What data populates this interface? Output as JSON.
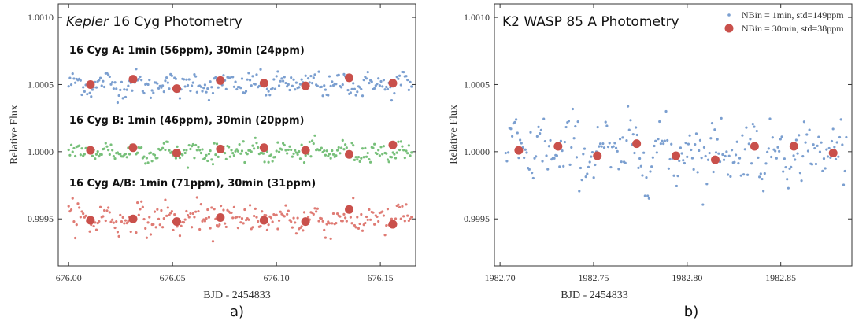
{
  "colors": {
    "blue": "#7b9fd0",
    "green": "#77c07a",
    "red_small": "#df7b74",
    "red_big": "#c9504b",
    "frame": "#333333"
  },
  "chart_data": [
    {
      "type": "scatter",
      "panel_label": "a)",
      "title_italic": "Kepler",
      "title_rest": " 16 Cyg Photometry",
      "xlabel": "BJD - 2454833",
      "ylabel": "Relative Flux",
      "xlim": [
        675.995,
        676.167
      ],
      "ylim": [
        0.99915,
        1.0011
      ],
      "xticks": [
        676.0,
        676.05,
        676.1,
        676.15
      ],
      "xtick_labels": [
        "676.00",
        "676.05",
        "676.10",
        "676.15"
      ],
      "yticks": [
        0.9995,
        1.0,
        1.0005,
        1.001
      ],
      "ytick_labels": [
        "0.9995",
        "1.0000",
        "1.0005",
        "1.0010"
      ],
      "annotations": [
        {
          "text": "16 Cyg A: 1min (56ppm), 30min (24ppm)",
          "x": 675.998,
          "y": 1.00073
        },
        {
          "text": "16 Cyg B: 1min (46ppm), 30min (20ppm)",
          "x": 675.998,
          "y": 1.00021
        },
        {
          "text": "16 Cyg A/B: 1min (71ppm), 30min (31ppm)",
          "x": 675.998,
          "y": 0.99974
        }
      ],
      "series": [
        {
          "key": "a_1min",
          "color": "blue",
          "kind": "small",
          "offset": 1.0005,
          "scatter": 5.6e-05,
          "x_range": [
            676.0,
            676.165
          ]
        },
        {
          "key": "a_30min",
          "color": "red_big",
          "kind": "big",
          "x": [
            676.0105,
            676.031,
            676.052,
            676.073,
            676.094,
            676.114,
            676.135,
            676.156
          ],
          "y": [
            1.0005,
            1.00054,
            1.00047,
            1.00053,
            1.00051,
            1.00049,
            1.00055,
            1.00051
          ]
        },
        {
          "key": "b_1min",
          "color": "green",
          "kind": "small",
          "offset": 1.0,
          "scatter": 4.6e-05,
          "x_range": [
            676.0,
            676.165
          ]
        },
        {
          "key": "b_30min",
          "color": "red_big",
          "kind": "big",
          "x": [
            676.0105,
            676.031,
            676.052,
            676.073,
            676.094,
            676.114,
            676.135,
            676.156
          ],
          "y": [
            1.00001,
            1.00003,
            0.99999,
            1.00002,
            1.00003,
            1.00001,
            0.99998,
            1.00005
          ]
        },
        {
          "key": "ab_1min",
          "color": "red_small",
          "kind": "small",
          "offset": 0.9995,
          "scatter": 7.1e-05,
          "x_range": [
            676.0,
            676.165
          ]
        },
        {
          "key": "ab_30min",
          "color": "red_big",
          "kind": "big",
          "x": [
            676.0105,
            676.031,
            676.052,
            676.073,
            676.094,
            676.114,
            676.135,
            676.156
          ],
          "y": [
            0.99949,
            0.9995,
            0.99948,
            0.99951,
            0.99949,
            0.99948,
            0.99957,
            0.99946
          ]
        }
      ]
    },
    {
      "type": "scatter",
      "panel_label": "b)",
      "title_italic": "",
      "title_rest": "K2 WASP 85 A Photometry",
      "xlabel": "BJD - 2454833",
      "ylabel": "Relative Flux",
      "xlim": [
        1982.697,
        1982.888
      ],
      "ylim": [
        0.99915,
        1.0011
      ],
      "xticks": [
        1982.7,
        1982.75,
        1982.8,
        1982.85
      ],
      "xtick_labels": [
        "1982.70",
        "1982.75",
        "1982.80",
        "1982.85"
      ],
      "yticks": [
        0.9995,
        1.0,
        1.0005,
        1.001
      ],
      "ytick_labels": [
        "0.9995",
        "1.0000",
        "1.0005",
        "1.0010"
      ],
      "legend_position": "top-right",
      "legend": [
        {
          "label": "NBin = 1min, std=149ppm",
          "color": "blue",
          "kind": "small"
        },
        {
          "label": "NBin = 30min, std=38ppm",
          "color": "red_big",
          "kind": "big"
        }
      ],
      "series": [
        {
          "key": "w_1min",
          "color": "blue",
          "kind": "small",
          "offset": 1.0,
          "scatter": 0.000149,
          "x_range": [
            1982.703,
            1982.885
          ]
        },
        {
          "key": "w_30min",
          "color": "red_big",
          "kind": "big",
          "x": [
            1982.71,
            1982.731,
            1982.752,
            1982.773,
            1982.794,
            1982.815,
            1982.836,
            1982.857,
            1982.878
          ],
          "y": [
            1.00001,
            1.00004,
            0.99997,
            1.00006,
            0.99997,
            0.99994,
            1.00004,
            1.00004,
            0.99999
          ]
        }
      ]
    }
  ]
}
